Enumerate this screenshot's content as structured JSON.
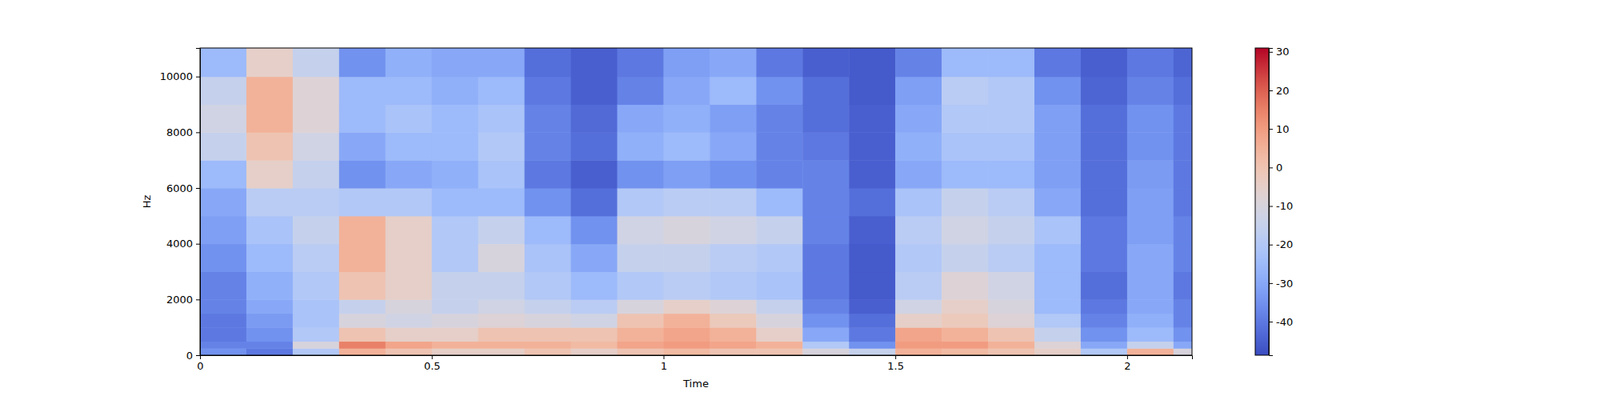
{
  "chart_data": {
    "type": "heatmap",
    "x_label": "Time",
    "y_label": "Hz",
    "xlim": [
      0,
      2.14
    ],
    "xticks": [
      0,
      0.5,
      1,
      1.5,
      2
    ],
    "ylim": [
      0,
      11025
    ],
    "yticks": [
      0,
      2000,
      4000,
      6000,
      8000,
      10000
    ],
    "x": [
      0,
      0.1,
      0.2,
      0.3,
      0.4,
      0.5,
      0.6,
      0.7,
      0.8,
      0.9,
      1.0,
      1.1,
      1.2,
      1.3,
      1.4,
      1.5,
      1.6,
      1.7,
      1.8,
      1.9,
      2.0,
      2.1,
      2.14
    ],
    "y": [
      0,
      250,
      500,
      1000,
      1500,
      2000,
      3000,
      4000,
      5000,
      6000,
      7000,
      8000,
      9000,
      10000,
      11025
    ],
    "z": [
      [
        -35,
        -38,
        -40,
        -40,
        -38,
        -38,
        -35,
        -32,
        -30,
        -25,
        -15,
        -12,
        -15,
        -25
      ],
      [
        -40,
        -38,
        -35,
        -33,
        -30,
        -28,
        -25,
        -22,
        -18,
        -5,
        0,
        5,
        5,
        -5
      ],
      [
        -20,
        -10,
        -20,
        -22,
        -22,
        -20,
        -18,
        -15,
        -18,
        -15,
        -12,
        -8,
        -8,
        -15
      ],
      [
        5,
        15,
        0,
        -10,
        -15,
        0,
        5,
        5,
        -20,
        -35,
        -30,
        -25,
        -25,
        -35
      ],
      [
        0,
        8,
        -5,
        -12,
        -10,
        -5,
        -5,
        -5,
        -20,
        -30,
        -25,
        -22,
        -25,
        -28
      ],
      [
        -5,
        5,
        -5,
        -10,
        -15,
        -15,
        -20,
        -20,
        -25,
        -28,
        -25,
        -25,
        -28,
        -30
      ],
      [
        -5,
        5,
        0,
        -8,
        -12,
        -15,
        -10,
        -15,
        -25,
        -22,
        -20,
        -22,
        -25,
        -30
      ],
      [
        0,
        5,
        0,
        -10,
        -15,
        -20,
        -22,
        -25,
        -35,
        -40,
        -38,
        -38,
        -40,
        -42
      ],
      [
        -5,
        3,
        0,
        -12,
        -18,
        -25,
        -30,
        -35,
        -42,
        -45,
        -42,
        -43,
        -45,
        -45
      ],
      [
        0,
        8,
        5,
        0,
        -10,
        -20,
        -15,
        -12,
        -20,
        -35,
        -28,
        -30,
        -38,
        -40
      ],
      [
        3,
        10,
        8,
        5,
        -5,
        -18,
        -15,
        -10,
        -18,
        -32,
        -25,
        -28,
        -30,
        -32
      ],
      [
        0,
        8,
        5,
        -2,
        -8,
        -20,
        -18,
        -12,
        -18,
        -35,
        -30,
        -32,
        -25,
        -30
      ],
      [
        0,
        5,
        -5,
        -10,
        -15,
        -22,
        -20,
        -15,
        -25,
        -38,
        -38,
        -38,
        -35,
        -40
      ],
      [
        -10,
        -20,
        -30,
        -35,
        -38,
        -40,
        -40,
        -38,
        -38,
        -38,
        -40,
        -42,
        -42,
        -45
      ],
      [
        -15,
        -35,
        -40,
        -42,
        -45,
        -46,
        -46,
        -45,
        -42,
        -45,
        -45,
        -45,
        -46,
        -46
      ],
      [
        5,
        10,
        8,
        -5,
        -12,
        -18,
        -20,
        -18,
        -22,
        -30,
        -28,
        -30,
        -32,
        -38
      ],
      [
        3,
        10,
        5,
        -2,
        -5,
        -8,
        -15,
        -12,
        -15,
        -25,
        -22,
        -20,
        -18,
        -25
      ],
      [
        0,
        5,
        0,
        -8,
        -10,
        -12,
        -18,
        -15,
        -18,
        -25,
        -22,
        -20,
        -20,
        -25
      ],
      [
        -5,
        -8,
        -15,
        -20,
        -25,
        -25,
        -25,
        -22,
        -30,
        -32,
        -32,
        -32,
        -35,
        -40
      ],
      [
        -20,
        -30,
        -35,
        -38,
        -40,
        -42,
        -40,
        -40,
        -42,
        -42,
        -42,
        -42,
        -44,
        -45
      ],
      [
        5,
        -15,
        -25,
        -28,
        -30,
        -30,
        -30,
        -32,
        -32,
        -33,
        -35,
        -35,
        -38,
        -40
      ],
      [
        -10,
        -30,
        -35,
        -38,
        -38,
        -40,
        -38,
        -38,
        -40,
        -40,
        -40,
        -40,
        -42,
        -44
      ]
    ],
    "clim": [
      -48.7,
      31
    ],
    "cticks": [
      -40,
      -30,
      -20,
      -10,
      0,
      10,
      20,
      30
    ]
  }
}
